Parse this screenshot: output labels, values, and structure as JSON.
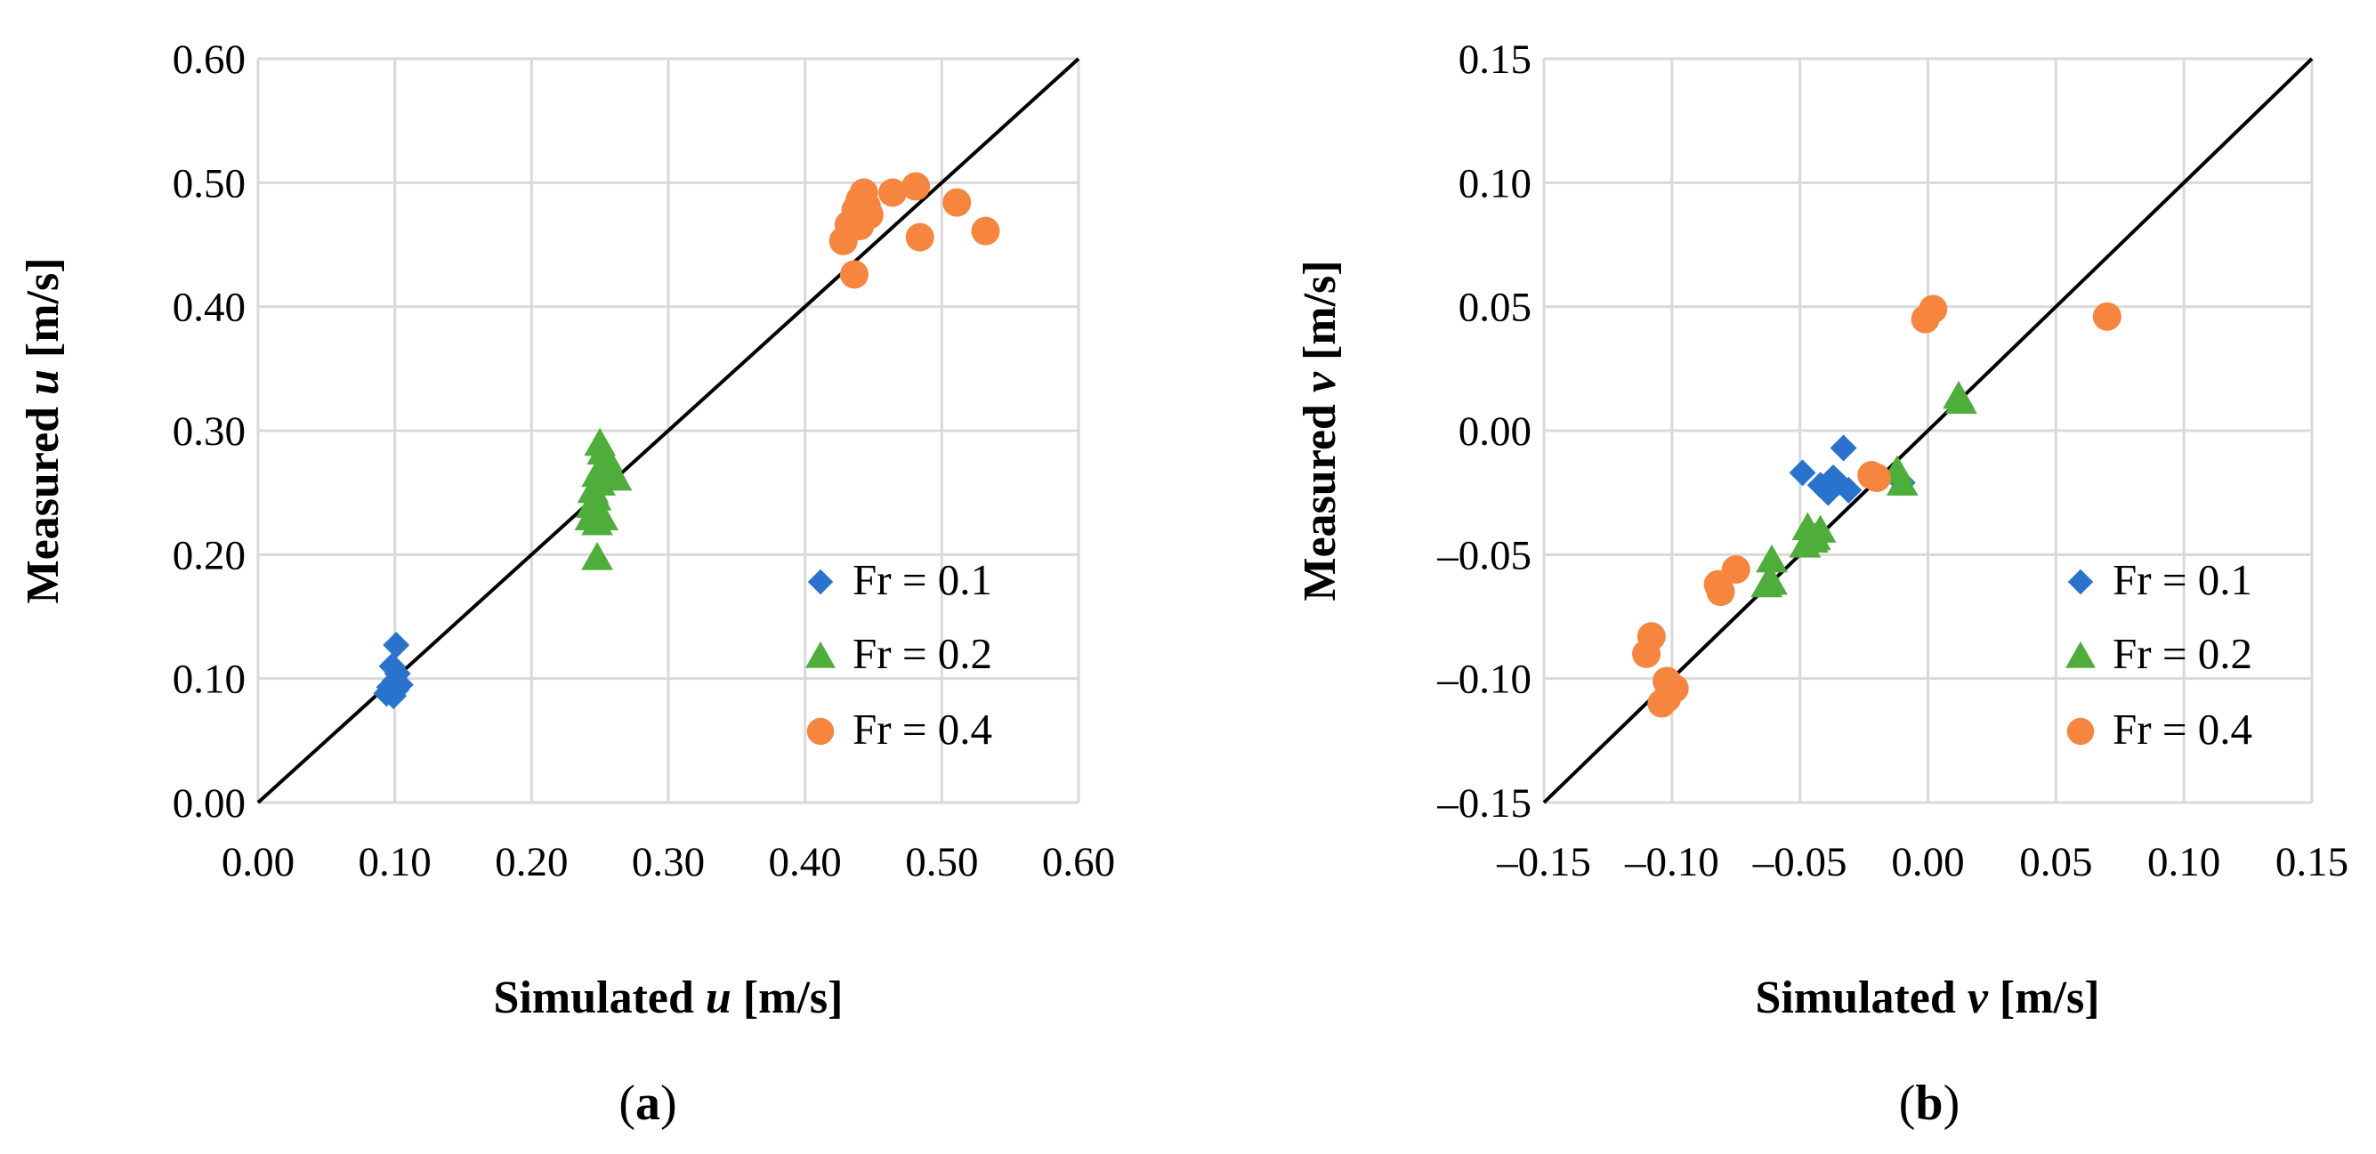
{
  "colors": {
    "fr01": "#2a73cc",
    "fr02": "#4ead3b",
    "fr04": "#f5853f",
    "grid": "#d9d9d9",
    "line": "#000000"
  },
  "chart_data": [
    {
      "type": "scatter",
      "panel": "a",
      "caption": {
        "open": "(",
        "letter": "a",
        "close": ")"
      },
      "xlabel": {
        "prefix": "Simulated ",
        "var": "u",
        "suffix": " [m/s]"
      },
      "ylabel": {
        "prefix": "Measured ",
        "var": "u",
        "suffix": " [m/s]"
      },
      "xlim": [
        0,
        0.6
      ],
      "ylim": [
        0,
        0.6
      ],
      "xticks": [
        0,
        0.1,
        0.2,
        0.3,
        0.4,
        0.5,
        0.6
      ],
      "yticks": [
        0,
        0.1,
        0.2,
        0.3,
        0.4,
        0.5,
        0.6
      ],
      "xtick_labels": [
        "0.00",
        "0.10",
        "0.20",
        "0.30",
        "0.40",
        "0.50",
        "0.60"
      ],
      "ytick_labels": [
        "0.00",
        "0.10",
        "0.20",
        "0.30",
        "0.40",
        "0.50",
        "0.60"
      ],
      "grid": true,
      "identity_line": true,
      "legend_position": "bottom-right",
      "series": [
        {
          "name": "Fr = 0.1",
          "marker": "diamond",
          "color_key": "fr01",
          "points": [
            [
              0.101,
              0.127
            ],
            [
              0.098,
              0.11
            ],
            [
              0.102,
              0.104
            ],
            [
              0.1,
              0.098
            ],
            [
              0.096,
              0.093
            ],
            [
              0.101,
              0.091
            ],
            [
              0.094,
              0.088
            ],
            [
              0.099,
              0.086
            ],
            [
              0.104,
              0.095
            ]
          ]
        },
        {
          "name": "Fr = 0.2",
          "marker": "triangle",
          "color_key": "fr02",
          "points": [
            [
              0.25,
              0.29
            ],
            [
              0.252,
              0.283
            ],
            [
              0.255,
              0.278
            ],
            [
              0.258,
              0.27
            ],
            [
              0.26,
              0.265
            ],
            [
              0.262,
              0.262
            ],
            [
              0.248,
              0.265
            ],
            [
              0.25,
              0.258
            ],
            [
              0.245,
              0.252
            ],
            [
              0.247,
              0.246
            ],
            [
              0.244,
              0.24
            ],
            [
              0.246,
              0.235
            ],
            [
              0.243,
              0.23
            ],
            [
              0.248,
              0.226
            ],
            [
              0.252,
              0.23
            ],
            [
              0.248,
              0.198
            ]
          ]
        },
        {
          "name": "Fr = 0.4",
          "marker": "circle",
          "color_key": "fr04",
          "points": [
            [
              0.436,
              0.426
            ],
            [
              0.428,
              0.453
            ],
            [
              0.432,
              0.466
            ],
            [
              0.437,
              0.478
            ],
            [
              0.44,
              0.486
            ],
            [
              0.443,
              0.492
            ],
            [
              0.447,
              0.474
            ],
            [
              0.464,
              0.492
            ],
            [
              0.481,
              0.497
            ],
            [
              0.484,
              0.456
            ],
            [
              0.511,
              0.484
            ],
            [
              0.532,
              0.461
            ],
            [
              0.44,
              0.465
            ],
            [
              0.445,
              0.481
            ]
          ]
        }
      ]
    },
    {
      "type": "scatter",
      "panel": "b",
      "caption": {
        "open": "(",
        "letter": "b",
        "close": ")"
      },
      "xlabel": {
        "prefix": "Simulated ",
        "var": "v",
        "suffix": " [m/s]"
      },
      "ylabel": {
        "prefix": "Measured ",
        "var": "v",
        "suffix": " [m/s]"
      },
      "xlim": [
        -0.15,
        0.15
      ],
      "ylim": [
        -0.15,
        0.15
      ],
      "xticks": [
        -0.15,
        -0.1,
        -0.05,
        0,
        0.05,
        0.1,
        0.15
      ],
      "yticks": [
        -0.15,
        -0.1,
        -0.05,
        0,
        0.05,
        0.1,
        0.15
      ],
      "xtick_labels": [
        "–0.15",
        "–0.10",
        "–0.05",
        "0.00",
        "0.05",
        "0.10",
        "0.15"
      ],
      "ytick_labels": [
        "–0.15",
        "–0.10",
        "–0.05",
        "0.00",
        "0.05",
        "0.10",
        "0.15"
      ],
      "grid": true,
      "identity_line": true,
      "legend_position": "bottom-right",
      "series": [
        {
          "name": "Fr = 0.1",
          "marker": "diamond",
          "color_key": "fr01",
          "points": [
            [
              -0.049,
              -0.017
            ],
            [
              -0.033,
              -0.007
            ],
            [
              -0.042,
              -0.022
            ],
            [
              -0.039,
              -0.025
            ],
            [
              -0.037,
              -0.019
            ],
            [
              -0.035,
              -0.021
            ],
            [
              -0.031,
              -0.024
            ],
            [
              -0.01,
              -0.021
            ]
          ]
        },
        {
          "name": "Fr = 0.2",
          "marker": "triangle",
          "color_key": "fr02",
          "points": [
            [
              0.012,
              0.014
            ],
            [
              0.013,
              0.012
            ],
            [
              -0.012,
              -0.016
            ],
            [
              -0.01,
              -0.021
            ],
            [
              -0.047,
              -0.039
            ],
            [
              -0.044,
              -0.043
            ],
            [
              -0.042,
              -0.04
            ],
            [
              -0.048,
              -0.046
            ],
            [
              -0.045,
              -0.044
            ],
            [
              -0.061,
              -0.052
            ],
            [
              -0.063,
              -0.062
            ],
            [
              -0.061,
              -0.061
            ]
          ]
        },
        {
          "name": "Fr = 0.4",
          "marker": "circle",
          "color_key": "fr04",
          "points": [
            [
              0.002,
              0.049
            ],
            [
              -0.001,
              0.045
            ],
            [
              0.07,
              0.046
            ],
            [
              -0.022,
              -0.018
            ],
            [
              -0.02,
              -0.019
            ],
            [
              -0.075,
              -0.056
            ],
            [
              -0.082,
              -0.062
            ],
            [
              -0.081,
              -0.065
            ],
            [
              -0.108,
              -0.083
            ],
            [
              -0.11,
              -0.09
            ],
            [
              -0.102,
              -0.101
            ],
            [
              -0.099,
              -0.104
            ],
            [
              -0.102,
              -0.108
            ],
            [
              -0.104,
              -0.11
            ]
          ]
        }
      ]
    }
  ]
}
